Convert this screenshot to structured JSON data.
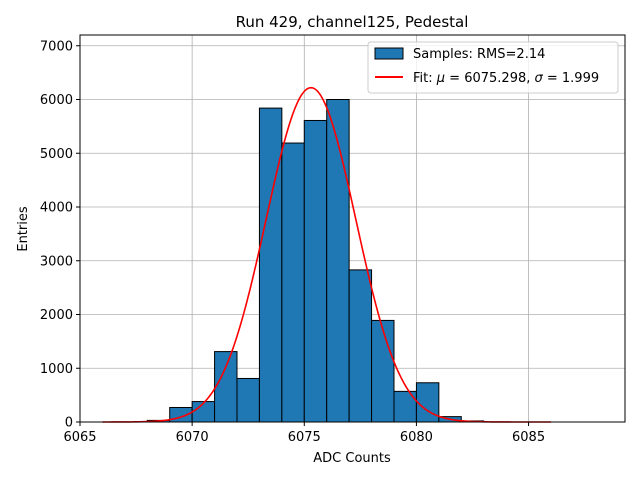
{
  "chart_data": {
    "type": "bar",
    "title": "Run 429, channel125, Pedestal",
    "xlabel": "ADC Counts",
    "ylabel": "Entries",
    "xlim": [
      6065,
      6089.3
    ],
    "ylim": [
      0,
      7200
    ],
    "xticks": [
      6065,
      6070,
      6075,
      6080,
      6085
    ],
    "yticks": [
      0,
      1000,
      2000,
      3000,
      4000,
      5000,
      6000,
      7000
    ],
    "grid": true,
    "legend_position": "top-right",
    "bin_width": 1,
    "colors": {
      "bars": "#1f77b4",
      "bar_edge": "#000000",
      "fit": "#ff0000",
      "grid": "#b0b0b0"
    },
    "series": [
      {
        "name": "Samples: RMS=2.14",
        "type": "histogram",
        "bin_edges_start": [
          6068,
          6069,
          6070,
          6071,
          6072,
          6073,
          6074,
          6075,
          6076,
          6077,
          6078,
          6079,
          6080,
          6081,
          6082
        ],
        "values": [
          30,
          270,
          380,
          1310,
          810,
          5840,
          5190,
          5610,
          6000,
          2830,
          1890,
          570,
          730,
          100,
          20
        ]
      },
      {
        "name_parts": [
          "Fit: ",
          "μ",
          " = 6075.298, ",
          "σ",
          " = 1.999"
        ],
        "type": "line",
        "mu": 6075.298,
        "sigma": 1.999,
        "amplitude": 6220,
        "x_range": [
          6066,
          6086
        ]
      }
    ]
  }
}
